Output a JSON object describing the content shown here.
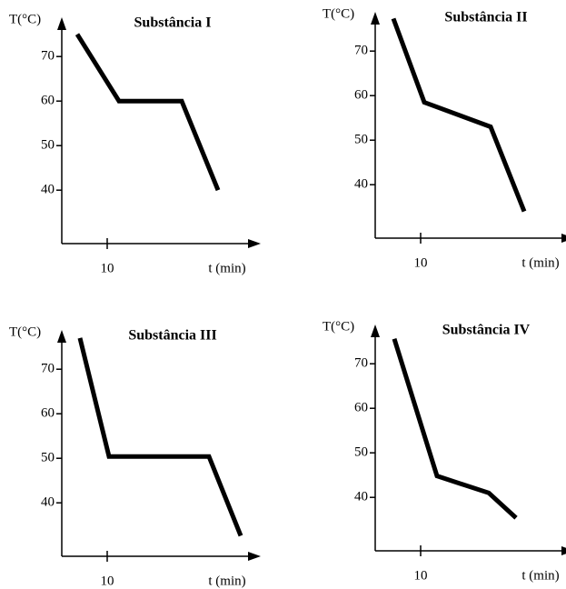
{
  "chart_data": [
    {
      "type": "line",
      "title": "Substância I",
      "y_label": "T(°C)",
      "x_label": "t (min)",
      "x": [
        3.4,
        12.6,
        26.4,
        34.4
      ],
      "values": [
        75,
        60,
        60,
        40
      ],
      "xlim": [
        0,
        43
      ],
      "ylim": [
        28,
        78
      ],
      "xticks": [
        10
      ],
      "yticks": [
        40,
        50,
        60,
        70
      ],
      "color": "#000000"
    },
    {
      "type": "line",
      "title": "Substância II",
      "y_label": "T(°C)",
      "x_label": "t (min)",
      "x": [
        4,
        10.8,
        25.4,
        32.8
      ],
      "values": [
        77.3,
        58.5,
        53,
        34
      ],
      "xlim": [
        0,
        43
      ],
      "ylim": [
        28,
        78
      ],
      "xticks": [
        10
      ],
      "yticks": [
        40,
        50,
        60,
        70
      ],
      "color": "#000000"
    },
    {
      "type": "line",
      "title": "Substância III",
      "y_label": "T(°C)",
      "x_label": "t (min)",
      "x": [
        4,
        10.4,
        32.4,
        39.4
      ],
      "values": [
        77,
        50.4,
        50.4,
        32.6
      ],
      "xlim": [
        0,
        43
      ],
      "ylim": [
        28,
        78
      ],
      "xticks": [
        10
      ],
      "yticks": [
        40,
        50,
        60,
        70
      ],
      "color": "#000000"
    },
    {
      "type": "line",
      "title": "Substância IV",
      "y_label": "T(°C)",
      "x_label": "t (min)",
      "x": [
        4.2,
        13.6,
        25,
        31
      ],
      "values": [
        75.6,
        44.8,
        41,
        35.4
      ],
      "xlim": [
        0,
        43
      ],
      "ylim": [
        28,
        78
      ],
      "xticks": [
        10
      ],
      "yticks": [
        40,
        50,
        60,
        70
      ],
      "color": "#000000"
    }
  ]
}
